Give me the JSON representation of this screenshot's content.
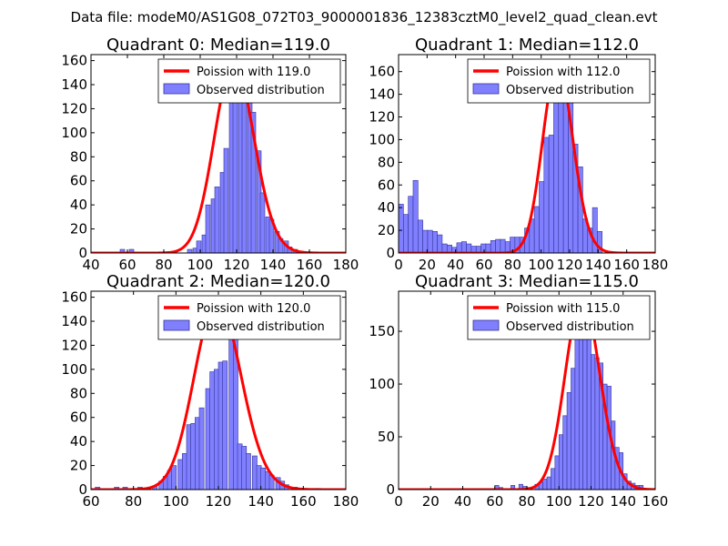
{
  "figure": {
    "suptitle": "Data file: modeM0/AS1G08_072T03_9000001836_12383cztM0_level2_quad_clean.evt"
  },
  "colors": {
    "bar_fill": "#8080ff",
    "bar_stroke": "#33339a",
    "line": "#ff0000"
  },
  "chart_data": [
    {
      "type": "bar",
      "title": "Quadrant 0: Median=119.0",
      "xlim": [
        40,
        180
      ],
      "ylim": [
        0,
        165
      ],
      "xticks": [
        "40",
        "60",
        "80",
        "100",
        "120",
        "140",
        "160",
        "180"
      ],
      "yticks": [
        "0",
        "20",
        "40",
        "60",
        "80",
        "100",
        "120",
        "140",
        "160"
      ],
      "legend_position": "top-right",
      "legend": {
        "line": "Poission with 119.0",
        "bars": "Observed distribution"
      },
      "bin_width": 2.5,
      "bins": [
        [
          56,
          3
        ],
        [
          61,
          3
        ],
        [
          93,
          3
        ],
        [
          96,
          4
        ],
        [
          98,
          10
        ],
        [
          101,
          15
        ],
        [
          103,
          40
        ],
        [
          106,
          45
        ],
        [
          108,
          55
        ],
        [
          111,
          67
        ],
        [
          113,
          87
        ],
        [
          116,
          135
        ],
        [
          118,
          147
        ],
        [
          121,
          135
        ],
        [
          123,
          133
        ],
        [
          126,
          133
        ],
        [
          128,
          117
        ],
        [
          131,
          85
        ],
        [
          133,
          50
        ],
        [
          136,
          30
        ],
        [
          138,
          28
        ],
        [
          141,
          18
        ],
        [
          143,
          12
        ],
        [
          146,
          10
        ],
        [
          148,
          5
        ],
        [
          151,
          3
        ],
        [
          153,
          1
        ]
      ],
      "curve": {
        "mean": 119.0,
        "peak": 158
      }
    },
    {
      "type": "bar",
      "title": "Quadrant 1: Median=112.0",
      "xlim": [
        0,
        180
      ],
      "ylim": [
        0,
        175
      ],
      "xticks": [
        "0",
        "20",
        "40",
        "60",
        "80",
        "100",
        "120",
        "140",
        "160",
        "180"
      ],
      "yticks": [
        "0",
        "20",
        "40",
        "60",
        "80",
        "100",
        "120",
        "140",
        "160"
      ],
      "legend_position": "top-right",
      "legend": {
        "line": "Poission with 112.0",
        "bars": "Observed distribution"
      },
      "bin_width": 3.4,
      "bins": [
        [
          0,
          43
        ],
        [
          3.4,
          34
        ],
        [
          6.8,
          50
        ],
        [
          10.2,
          64
        ],
        [
          13.6,
          29
        ],
        [
          17,
          20
        ],
        [
          20.4,
          20
        ],
        [
          23.8,
          19
        ],
        [
          27.2,
          16
        ],
        [
          30.6,
          8
        ],
        [
          34,
          7
        ],
        [
          37.4,
          5
        ],
        [
          40.8,
          9
        ],
        [
          44.2,
          10
        ],
        [
          47.6,
          8
        ],
        [
          51,
          6
        ],
        [
          54.4,
          6
        ],
        [
          57.8,
          8
        ],
        [
          61.2,
          8
        ],
        [
          64.6,
          11
        ],
        [
          68,
          12
        ],
        [
          71.4,
          12
        ],
        [
          74.8,
          10
        ],
        [
          78.2,
          14
        ],
        [
          81.6,
          14
        ],
        [
          85,
          14
        ],
        [
          88.4,
          22
        ],
        [
          91.8,
          30
        ],
        [
          95.2,
          41
        ],
        [
          98.6,
          63
        ],
        [
          102,
          102
        ],
        [
          105.4,
          104
        ],
        [
          108.8,
          153
        ],
        [
          112.2,
          157
        ],
        [
          115.6,
          160
        ],
        [
          119,
          135
        ],
        [
          122.4,
          96
        ],
        [
          125.8,
          76
        ],
        [
          129.2,
          30
        ],
        [
          132.6,
          22
        ],
        [
          136,
          40
        ],
        [
          139.4,
          19
        ]
      ],
      "curve": {
        "mean": 112.0,
        "peak": 165
      }
    },
    {
      "type": "bar",
      "title": "Quadrant 2: Median=120.0",
      "xlim": [
        60,
        180
      ],
      "ylim": [
        0,
        165
      ],
      "xticks": [
        "60",
        "80",
        "100",
        "120",
        "140",
        "160",
        "180"
      ],
      "yticks": [
        "0",
        "20",
        "40",
        "60",
        "80",
        "100",
        "120",
        "140",
        "160"
      ],
      "legend_position": "top-right",
      "legend": {
        "line": "Poission with 120.0",
        "bars": "Observed distribution"
      },
      "bin_width": 2.2,
      "bins": [
        [
          62,
          2
        ],
        [
          71,
          2
        ],
        [
          75,
          2
        ],
        [
          82,
          2
        ],
        [
          86,
          1
        ],
        [
          89,
          3
        ],
        [
          92,
          7
        ],
        [
          94,
          11
        ],
        [
          96,
          16
        ],
        [
          98,
          20
        ],
        [
          101,
          25
        ],
        [
          103,
          30
        ],
        [
          105,
          54
        ],
        [
          107,
          55
        ],
        [
          109,
          60
        ],
        [
          111,
          68
        ],
        [
          114,
          84
        ],
        [
          116,
          98
        ],
        [
          118,
          100
        ],
        [
          120,
          106
        ],
        [
          122,
          107
        ],
        [
          125,
          127
        ],
        [
          127,
          127
        ],
        [
          129,
          38
        ],
        [
          131,
          36
        ],
        [
          133,
          30
        ],
        [
          136,
          28
        ],
        [
          138,
          20
        ],
        [
          140,
          18
        ],
        [
          142,
          15
        ],
        [
          144,
          12
        ],
        [
          147,
          10
        ],
        [
          149,
          7
        ],
        [
          151,
          4
        ],
        [
          155,
          2
        ],
        [
          166,
          1
        ]
      ],
      "curve": {
        "mean": 120.0,
        "peak": 157
      }
    },
    {
      "type": "bar",
      "title": "Quadrant 3: Median=115.0",
      "xlim": [
        0,
        160
      ],
      "ylim": [
        0,
        188
      ],
      "xticks": [
        "0",
        "20",
        "40",
        "60",
        "80",
        "100",
        "120",
        "140",
        "160"
      ],
      "yticks": [
        "0",
        "50",
        "100",
        "150"
      ],
      "legend_position": "top-right",
      "legend": {
        "line": "Poission with 115.0",
        "bars": "Observed distribution"
      },
      "bin_width": 2.5,
      "bins": [
        [
          60,
          4
        ],
        [
          62.5,
          2
        ],
        [
          70,
          4
        ],
        [
          75,
          5
        ],
        [
          77.5,
          3
        ],
        [
          80,
          2
        ],
        [
          85,
          5
        ],
        [
          87.5,
          7
        ],
        [
          90,
          10
        ],
        [
          92.5,
          12
        ],
        [
          95,
          20
        ],
        [
          97.5,
          32
        ],
        [
          100,
          52
        ],
        [
          102.5,
          70
        ],
        [
          105,
          92
        ],
        [
          107.5,
          115
        ],
        [
          110,
          150
        ],
        [
          112.5,
          175
        ],
        [
          115,
          175
        ],
        [
          117.5,
          163
        ],
        [
          120,
          128
        ],
        [
          122.5,
          125
        ],
        [
          125,
          120
        ],
        [
          127.5,
          100
        ],
        [
          130,
          98
        ],
        [
          132.5,
          65
        ],
        [
          135,
          40
        ],
        [
          137.5,
          35
        ],
        [
          140,
          15
        ],
        [
          142.5,
          8
        ],
        [
          145,
          6
        ],
        [
          147.5,
          4
        ],
        [
          150,
          4
        ]
      ],
      "curve": {
        "mean": 115.0,
        "peak": 182
      }
    }
  ]
}
